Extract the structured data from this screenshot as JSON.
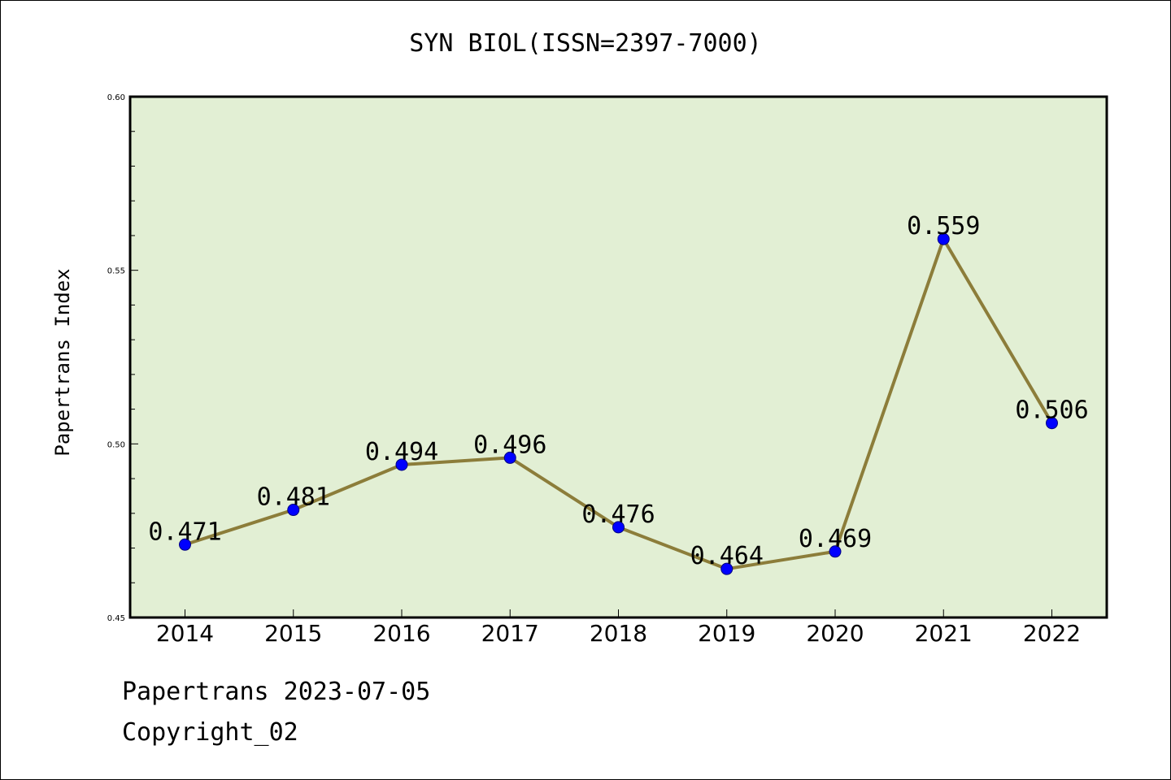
{
  "chart_data": {
    "type": "line",
    "title": "SYN BIOL(ISSN=2397-7000)",
    "xlabel": "",
    "ylabel": "Papertrans Index",
    "categories": [
      "2014",
      "2015",
      "2016",
      "2017",
      "2018",
      "2019",
      "2020",
      "2021",
      "2022"
    ],
    "series": [
      {
        "values": [
          0.471,
          0.481,
          0.494,
          0.496,
          0.476,
          0.464,
          0.469,
          0.559,
          0.506
        ]
      }
    ],
    "data_labels": [
      "0.471",
      "0.481",
      "0.494",
      "0.496",
      "0.476",
      "0.464",
      "0.469",
      "0.559",
      "0.506"
    ],
    "ylim": [
      0.45,
      0.6
    ],
    "yticks": [
      "0.45",
      "0.50",
      "0.55",
      "0.60"
    ],
    "grid": false,
    "colors": {
      "plot_background": "#e2efd4",
      "line": "#8c7d3a",
      "marker": "#0000ff"
    }
  },
  "footer": {
    "line1": "Papertrans 2023-07-05",
    "line2": "Copyright_02"
  }
}
